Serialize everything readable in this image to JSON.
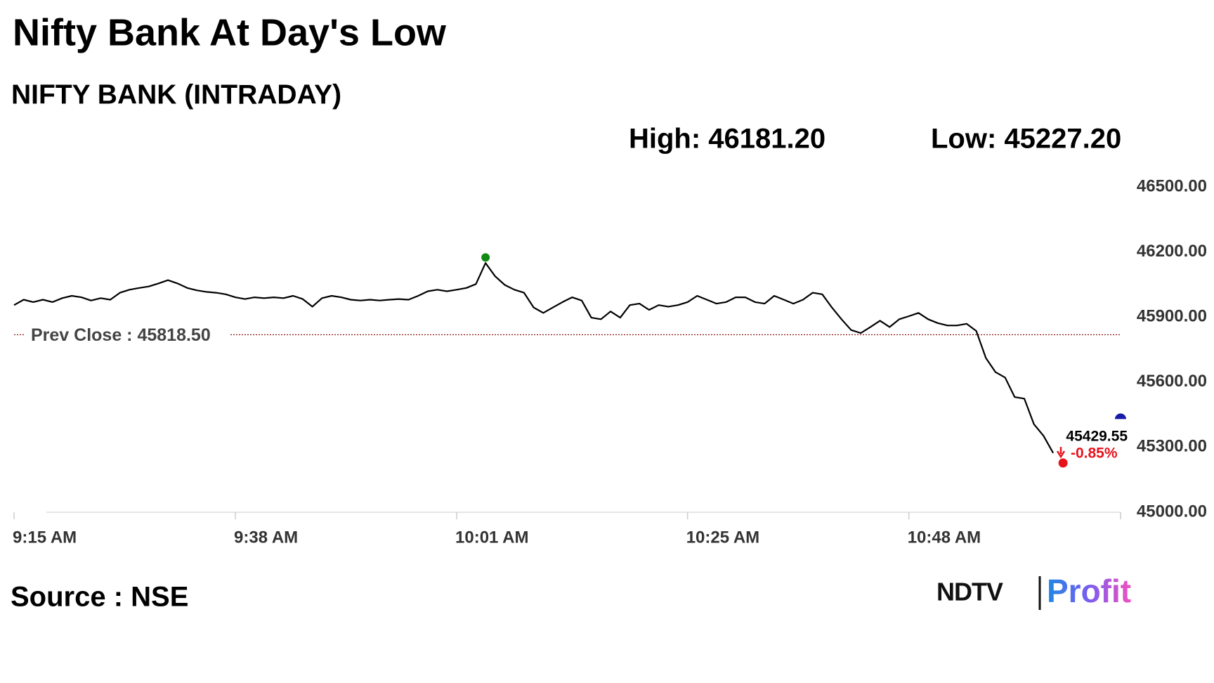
{
  "chart_data": {
    "type": "line",
    "title": "Nifty Bank At Day's Low",
    "subtitle": "NIFTY BANK (INTRADAY)",
    "high": {
      "value": 46181.2,
      "label": "High: 46181.20"
    },
    "low": {
      "value": 45227.2,
      "label": "Low: 45227.20"
    },
    "last": 45429.55,
    "change": {
      "value": -0.85,
      "label": "-0.85%"
    },
    "reference_line": {
      "value": 45818.5,
      "label": "Prev Close : 45818.50"
    },
    "categories": [
      "9:15 AM",
      null,
      null,
      null,
      null,
      null,
      null,
      null,
      null,
      null,
      null,
      null,
      null,
      null,
      null,
      null,
      null,
      null,
      null,
      null,
      null,
      null,
      null,
      "9:38 AM",
      null,
      null,
      null,
      null,
      null,
      null,
      null,
      null,
      null,
      null,
      null,
      null,
      null,
      null,
      null,
      null,
      null,
      null,
      null,
      null,
      null,
      null,
      "10:01 AM",
      null,
      null,
      null,
      null,
      null,
      null,
      null,
      null,
      null,
      null,
      null,
      null,
      null,
      null,
      null,
      null,
      null,
      null,
      null,
      null,
      null,
      null,
      null,
      "10:25 AM",
      null,
      null,
      null,
      null,
      null,
      null,
      null,
      null,
      null,
      null,
      null,
      null,
      null,
      null,
      null,
      null,
      null,
      null,
      null,
      null,
      null,
      null,
      "10:48 AM",
      null,
      null,
      null,
      null,
      null,
      null,
      null,
      null,
      null,
      null,
      null,
      null,
      null,
      null,
      null,
      null,
      null,
      null,
      null,
      null,
      null,
      null
    ],
    "values": [
      45955,
      45980,
      45969,
      45980,
      45969,
      45987,
      45998,
      45991,
      45976,
      45987,
      45980,
      46012,
      46026,
      46034,
      46041,
      46055,
      46070,
      46055,
      46034,
      46023,
      46016,
      46012,
      46005,
      45991,
      45983,
      45991,
      45987,
      45991,
      45987,
      45998,
      45983,
      45948,
      45987,
      45998,
      45991,
      45980,
      45976,
      45980,
      45976,
      45980,
      45983,
      45980,
      45998,
      46019,
      46026,
      46019,
      46026,
      46034,
      46052,
      46149,
      46088,
      46048,
      46026,
      46012,
      45944,
      45919,
      45944,
      45969,
      45991,
      45976,
      45897,
      45890,
      45926,
      45897,
      45955,
      45962,
      45933,
      45955,
      45948,
      45955,
      45969,
      45998,
      45980,
      45962,
      45969,
      45991,
      45991,
      45969,
      45962,
      45998,
      45980,
      45962,
      45980,
      46012,
      46005,
      45944,
      45890,
      45840,
      45826,
      45854,
      45883,
      45854,
      45890,
      45904,
      45919,
      45890,
      45872,
      45861,
      45861,
      45869,
      45836,
      45711,
      45646,
      45621,
      45531,
      45524,
      45406,
      45352,
      45273,
      null,
      null,
      null,
      null,
      null,
      null,
      null
    ],
    "color": "#000000",
    "ylim": [
      45000,
      46500
    ],
    "yticks": [
      {
        "value": 45000,
        "label": "45000.00"
      },
      {
        "value": 45300,
        "label": "45300.00"
      },
      {
        "value": 45600,
        "label": "45600.00"
      },
      {
        "value": 45900,
        "label": "45900.00"
      },
      {
        "value": 46200,
        "label": "46200.00"
      },
      {
        "value": 46500,
        "label": "46500.00"
      }
    ],
    "grid": false,
    "source": "Source : NSE",
    "logo": {
      "left": "NDTV",
      "right": "Profit"
    }
  }
}
